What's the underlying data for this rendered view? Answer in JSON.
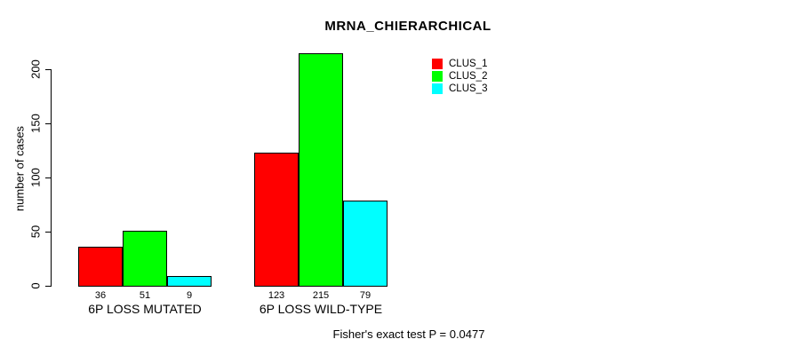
{
  "chart_data": {
    "type": "bar",
    "title": "MRNA_CHIERARCHICAL",
    "xlabel": "",
    "ylabel": "number of cases",
    "ylim": [
      0,
      215
    ],
    "yticks": [
      0,
      50,
      100,
      150,
      200
    ],
    "grid": false,
    "categories": [
      "6P LOSS MUTATED",
      "6P LOSS WILD-TYPE"
    ],
    "series": [
      {
        "name": "CLUS_1",
        "color": "#ff0000",
        "values": [
          36,
          123
        ]
      },
      {
        "name": "CLUS_2",
        "color": "#00ff00",
        "values": [
          51,
          215
        ]
      },
      {
        "name": "CLUS_3",
        "color": "#00ffff",
        "values": [
          9,
          79
        ]
      }
    ],
    "bar_value_labels": [
      [
        36,
        51,
        9
      ],
      [
        123,
        215,
        79
      ]
    ],
    "legend": {
      "position": "top-right",
      "entries": [
        "CLUS_1",
        "CLUS_2",
        "CLUS_3"
      ]
    },
    "annotation": "Fisher's exact test P = 0.0477"
  }
}
